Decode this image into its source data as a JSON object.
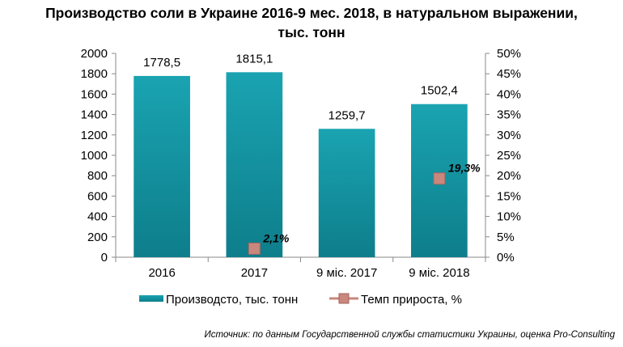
{
  "title_line1": "Производство соли в Украине 2016-9 мес. 2018, в натуральном выражении,",
  "title_line2": "тыс. тонн",
  "source": "Источник: по данным Государственной службы статистики Украины, оценка Pro-Consulting",
  "colors": {
    "bar": "#1aa3b1",
    "bar_dark": "#0e7e8b",
    "marker": "#c9877d",
    "marker_border": "#a3665d",
    "axis": "#888888"
  },
  "chart_data": {
    "type": "bar",
    "categories": [
      "2016",
      "2017",
      "9 міс. 2017",
      "9 міс. 2018"
    ],
    "series": [
      {
        "name": "Производсто, тыс. тонн",
        "type": "bar",
        "axis": "left",
        "values": [
          1778.5,
          1815.1,
          1259.7,
          1502.4
        ],
        "labels": [
          "1778,5",
          "1815,1",
          "1259,7",
          "1502,4"
        ]
      },
      {
        "name": "Темп прироста, %",
        "type": "marker",
        "axis": "right",
        "values": [
          null,
          2.1,
          null,
          19.3
        ],
        "labels": [
          "",
          "2,1%",
          "",
          "19,3%"
        ]
      }
    ],
    "y_left": {
      "min": 0,
      "max": 2000,
      "step": 200,
      "ticks": [
        "0",
        "200",
        "400",
        "600",
        "800",
        "1000",
        "1200",
        "1400",
        "1600",
        "1800",
        "2000"
      ]
    },
    "y_right": {
      "min": 0,
      "max": 50,
      "step": 5,
      "ticks": [
        "0%",
        "5%",
        "10%",
        "15%",
        "20%",
        "25%",
        "30%",
        "35%",
        "40%",
        "45%",
        "50%"
      ]
    },
    "grid": false,
    "legend": "bottom"
  }
}
